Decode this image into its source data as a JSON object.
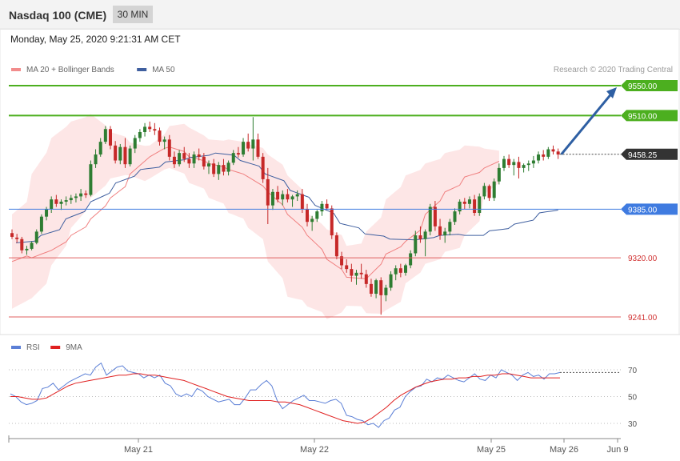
{
  "header": {
    "title": "Nasdaq 100 (CME)",
    "timeframe": "30 MIN"
  },
  "date_line": "Monday, May 25, 2020 9:21:31 AM CET",
  "credit": "Research © 2020 Trading Central",
  "colors": {
    "up": "#2e7d32",
    "down": "#c62828",
    "band": "#fde0e0",
    "ma20": "#f08080",
    "ma50": "#3f5f9f",
    "resistance": "#4caf1f",
    "pivot": "#3f7be0",
    "support": "#e06060",
    "current": "#333333",
    "arrow": "#2e5fa3",
    "rsi": "#5b7fd6",
    "rsi_ma": "#e02020"
  },
  "chart_data": [
    {
      "type": "candlestick",
      "legend": [
        {
          "name": "MA 20 + Bollinger Bands",
          "color": "#f28c8c"
        },
        {
          "name": "MA 50",
          "color": "#3f5f9f"
        }
      ],
      "levels": [
        {
          "value": 9550.0,
          "label": "9550.00",
          "kind": "resistance"
        },
        {
          "value": 9510.0,
          "label": "9510.00",
          "kind": "resistance"
        },
        {
          "value": 9458.25,
          "label": "9458.25",
          "kind": "current"
        },
        {
          "value": 9385.0,
          "label": "9385.00",
          "kind": "pivot"
        },
        {
          "value": 9320.0,
          "label": "9320.00",
          "kind": "support"
        },
        {
          "value": 9241.0,
          "label": "9241.00",
          "kind": "support"
        }
      ],
      "ylim": [
        9232,
        9562
      ],
      "x_ticks": [
        "May 21",
        "May 22",
        "May 25",
        "May 26",
        "Jun 9"
      ],
      "ohlc": [
        [
          9353,
          9358,
          9345,
          9348
        ],
        [
          9347,
          9352,
          9340,
          9345
        ],
        [
          9345,
          9348,
          9326,
          9330
        ],
        [
          9330,
          9336,
          9324,
          9332
        ],
        [
          9332,
          9342,
          9330,
          9340
        ],
        [
          9340,
          9358,
          9338,
          9355
        ],
        [
          9355,
          9378,
          9352,
          9375
        ],
        [
          9375,
          9388,
          9370,
          9385
        ],
        [
          9385,
          9402,
          9380,
          9398
        ],
        [
          9398,
          9404,
          9388,
          9392
        ],
        [
          9392,
          9398,
          9384,
          9395
        ],
        [
          9395,
          9402,
          9390,
          9397
        ],
        [
          9397,
          9404,
          9392,
          9400
        ],
        [
          9400,
          9406,
          9394,
          9402
        ],
        [
          9402,
          9412,
          9396,
          9406
        ],
        [
          9406,
          9410,
          9400,
          9404
        ],
        [
          9404,
          9450,
          9402,
          9445
        ],
        [
          9445,
          9465,
          9440,
          9458
        ],
        [
          9458,
          9480,
          9455,
          9475
        ],
        [
          9475,
          9496,
          9472,
          9492
        ],
        [
          9492,
          9496,
          9465,
          9470
        ],
        [
          9470,
          9476,
          9446,
          9450
        ],
        [
          9450,
          9472,
          9445,
          9468
        ],
        [
          9468,
          9480,
          9440,
          9445
        ],
        [
          9445,
          9470,
          9442,
          9466
        ],
        [
          9466,
          9484,
          9460,
          9480
        ],
        [
          9480,
          9492,
          9475,
          9488
        ],
        [
          9488,
          9500,
          9482,
          9495
        ],
        [
          9495,
          9502,
          9488,
          9492
        ],
        [
          9492,
          9500,
          9484,
          9490
        ],
        [
          9490,
          9494,
          9470,
          9475
        ],
        [
          9475,
          9482,
          9465,
          9478
        ],
        [
          9478,
          9484,
          9450,
          9455
        ],
        [
          9455,
          9462,
          9440,
          9445
        ],
        [
          9445,
          9464,
          9442,
          9460
        ],
        [
          9460,
          9468,
          9448,
          9452
        ],
        [
          9452,
          9460,
          9440,
          9446
        ],
        [
          9446,
          9462,
          9440,
          9458
        ],
        [
          9458,
          9466,
          9450,
          9455
        ],
        [
          9455,
          9460,
          9438,
          9442
        ],
        [
          9442,
          9450,
          9432,
          9446
        ],
        [
          9446,
          9452,
          9428,
          9432
        ],
        [
          9432,
          9448,
          9424,
          9444
        ],
        [
          9444,
          9452,
          9430,
          9435
        ],
        [
          9435,
          9450,
          9430,
          9447
        ],
        [
          9447,
          9464,
          9444,
          9460
        ],
        [
          9460,
          9468,
          9454,
          9458
        ],
        [
          9458,
          9480,
          9455,
          9475
        ],
        [
          9475,
          9486,
          9462,
          9466
        ],
        [
          9466,
          9508,
          9450,
          9478
        ],
        [
          9478,
          9486,
          9452,
          9455
        ],
        [
          9455,
          9460,
          9420,
          9425
        ],
        [
          9425,
          9440,
          9365,
          9390
        ],
        [
          9390,
          9412,
          9384,
          9408
        ],
        [
          9408,
          9416,
          9394,
          9398
        ],
        [
          9398,
          9410,
          9390,
          9405
        ],
        [
          9405,
          9412,
          9394,
          9398
        ],
        [
          9398,
          9404,
          9388,
          9402
        ],
        [
          9402,
          9410,
          9396,
          9405
        ],
        [
          9405,
          9412,
          9380,
          9385
        ],
        [
          9385,
          9392,
          9362,
          9368
        ],
        [
          9368,
          9376,
          9356,
          9372
        ],
        [
          9372,
          9384,
          9368,
          9382
        ],
        [
          9382,
          9396,
          9376,
          9392
        ],
        [
          9392,
          9398,
          9384,
          9386
        ],
        [
          9386,
          9390,
          9345,
          9350
        ],
        [
          9350,
          9354,
          9318,
          9322
        ],
        [
          9322,
          9328,
          9305,
          9310
        ],
        [
          9310,
          9318,
          9300,
          9305
        ],
        [
          9305,
          9312,
          9288,
          9296
        ],
        [
          9296,
          9304,
          9284,
          9300
        ],
        [
          9300,
          9312,
          9292,
          9298
        ],
        [
          9298,
          9304,
          9280,
          9285
        ],
        [
          9285,
          9292,
          9268,
          9272
        ],
        [
          9272,
          9292,
          9266,
          9290
        ],
        [
          9290,
          9294,
          9244,
          9270
        ],
        [
          9270,
          9284,
          9262,
          9280
        ],
        [
          9280,
          9302,
          9276,
          9298
        ],
        [
          9298,
          9310,
          9290,
          9306
        ],
        [
          9306,
          9312,
          9294,
          9300
        ],
        [
          9300,
          9312,
          9296,
          9310
        ],
        [
          9310,
          9330,
          9306,
          9326
        ],
        [
          9326,
          9356,
          9322,
          9350
        ],
        [
          9350,
          9362,
          9340,
          9345
        ],
        [
          9345,
          9358,
          9322,
          9355
        ],
        [
          9355,
          9392,
          9350,
          9388
        ],
        [
          9388,
          9396,
          9356,
          9362
        ],
        [
          9362,
          9372,
          9344,
          9350
        ],
        [
          9350,
          9360,
          9340,
          9355
        ],
        [
          9355,
          9372,
          9350,
          9368
        ],
        [
          9368,
          9386,
          9364,
          9382
        ],
        [
          9382,
          9398,
          9378,
          9395
        ],
        [
          9395,
          9400,
          9385,
          9392
        ],
        [
          9392,
          9402,
          9386,
          9398
        ],
        [
          9398,
          9404,
          9376,
          9380
        ],
        [
          9380,
          9406,
          9376,
          9402
        ],
        [
          9402,
          9420,
          9398,
          9416
        ],
        [
          9416,
          9418,
          9396,
          9400
        ],
        [
          9400,
          9426,
          9396,
          9422
        ],
        [
          9422,
          9446,
          9418,
          9440
        ],
        [
          9440,
          9456,
          9436,
          9452
        ],
        [
          9452,
          9458,
          9440,
          9444
        ],
        [
          9444,
          9452,
          9430,
          9448
        ],
        [
          9448,
          9455,
          9426,
          9440
        ],
        [
          9440,
          9446,
          9434,
          9444
        ],
        [
          9444,
          9450,
          9436,
          9446
        ],
        [
          9446,
          9456,
          9440,
          9450
        ],
        [
          9450,
          9462,
          9446,
          9458
        ],
        [
          9458,
          9464,
          9450,
          9455
        ],
        [
          9455,
          9468,
          9452,
          9465
        ],
        [
          9465,
          9470,
          9458,
          9462
        ],
        [
          9462,
          9466,
          9452,
          9458
        ]
      ],
      "ma20": [
        [
          9315,
          9325
        ],
        [
          9320,
          9330
        ],
        [
          9330,
          9345
        ],
        [
          9350,
          9365
        ],
        [
          9372,
          9395
        ],
        [
          9400,
          9420
        ],
        [
          9432,
          9455
        ],
        [
          9455,
          9470
        ],
        [
          9468,
          9460
        ],
        [
          9455,
          9448
        ],
        [
          9446,
          9440
        ],
        [
          9438,
          9430
        ],
        [
          9428,
          9412
        ],
        [
          9408,
          9385
        ],
        [
          9378,
          9355
        ],
        [
          9350,
          9325
        ],
        [
          9318,
          9300
        ],
        [
          9294,
          9292
        ],
        [
          9292,
          9318
        ],
        [
          9325,
          9338
        ],
        [
          9342,
          9362
        ],
        [
          9378,
          9402
        ],
        [
          9408,
          9420
        ],
        [
          9428,
          9436
        ],
        [
          9440,
          9452
        ]
      ],
      "bb_upper": [
        [
          9378,
          9400
        ],
        [
          9432,
          9470
        ],
        [
          9480,
          9500
        ],
        [
          9502,
          9510
        ],
        [
          9512,
          9492
        ],
        [
          9488,
          9480
        ],
        [
          9474,
          9468
        ],
        [
          9470,
          9490
        ],
        [
          9496,
          9500
        ],
        [
          9494,
          9480
        ],
        [
          9478,
          9476
        ],
        [
          9478,
          9474
        ],
        [
          9472,
          9465
        ],
        [
          9458,
          9440
        ],
        [
          9430,
          9405
        ],
        [
          9380,
          9360
        ],
        [
          9358,
          9348
        ],
        [
          9336,
          9340
        ],
        [
          9355,
          9380
        ],
        [
          9398,
          9420
        ],
        [
          9430,
          9440
        ],
        [
          9446,
          9454
        ],
        [
          9460,
          9466
        ],
        [
          9470,
          9468
        ],
        [
          9466,
          9462
        ]
      ],
      "bb_lower": [
        [
          9252,
          9266
        ],
        [
          9266,
          9292
        ],
        [
          9310,
          9345
        ],
        [
          9360,
          9390
        ],
        [
          9400,
          9422
        ],
        [
          9426,
          9432
        ],
        [
          9430,
          9420
        ],
        [
          9426,
          9442
        ],
        [
          9440,
          9430
        ],
        [
          9420,
          9410
        ],
        [
          9400,
          9390
        ],
        [
          9380,
          9370
        ],
        [
          9360,
          9340
        ],
        [
          9315,
          9285
        ],
        [
          9268,
          9262
        ],
        [
          9255,
          9245
        ],
        [
          9238,
          9250
        ],
        [
          9256,
          9255
        ],
        [
          9246,
          9245
        ],
        [
          9250,
          9265
        ],
        [
          9286,
          9305
        ],
        [
          9312,
          9320
        ],
        [
          9328,
          9335
        ],
        [
          9350,
          9375
        ],
        [
          9405,
          9425
        ]
      ],
      "ma50": [
        [
          9340,
          9343
        ],
        [
          9350,
          9360
        ],
        [
          9372,
          9385
        ],
        [
          9395,
          9410
        ],
        [
          9420,
          9432
        ],
        [
          9438,
          9442
        ],
        [
          9448,
          9452
        ],
        [
          9454,
          9458
        ],
        [
          9460,
          9456
        ],
        [
          9450,
          9440
        ],
        [
          9432,
          9420
        ],
        [
          9410,
          9398
        ],
        [
          9390,
          9376
        ],
        [
          9366,
          9358
        ],
        [
          9352,
          9348
        ],
        [
          9345,
          9344
        ],
        [
          9344,
          9348
        ],
        [
          9350,
          9352
        ],
        [
          9350,
          9350
        ],
        [
          9356,
          9360
        ],
        [
          9365,
          9372
        ],
        [
          9380,
          9385
        ]
      ]
    },
    {
      "type": "line",
      "legend": [
        {
          "name": "RSI",
          "color": "#5b7fd6"
        },
        {
          "name": "9MA",
          "color": "#e02020"
        }
      ],
      "ylim": [
        17,
        81
      ],
      "y_ticks": [
        30,
        50,
        70
      ],
      "series": [
        {
          "name": "RSI",
          "values": [
            52,
            50,
            46,
            44,
            45,
            47,
            56,
            57,
            60,
            55,
            58,
            61,
            63,
            65,
            67,
            66,
            72,
            75,
            66,
            69,
            72,
            73,
            69,
            68,
            67,
            64,
            66,
            64,
            66,
            60,
            58,
            52,
            50,
            52,
            50,
            56,
            54,
            50,
            48,
            46,
            47,
            48,
            44,
            44,
            49,
            55,
            55,
            59,
            62,
            58,
            47,
            41,
            44,
            47,
            49,
            51,
            47,
            47,
            46,
            45,
            47,
            48,
            45,
            36,
            35,
            33,
            32,
            29,
            30,
            27,
            32,
            34,
            40,
            42,
            50,
            54,
            57,
            58,
            63,
            61,
            64,
            63,
            66,
            64,
            62,
            61,
            64,
            67,
            63,
            62,
            66,
            64,
            70,
            68,
            66,
            62,
            66,
            68,
            65,
            66,
            63,
            67,
            67,
            68
          ]
        },
        {
          "name": "9MA",
          "values": [
            50,
            50,
            49,
            48,
            48,
            49,
            52,
            55,
            58,
            60,
            61,
            62,
            63,
            64,
            65,
            66,
            66,
            67,
            67,
            66,
            66,
            65,
            64,
            63,
            62,
            60,
            58,
            56,
            54,
            52,
            50,
            49,
            48,
            47,
            47,
            47,
            47,
            46,
            46,
            45,
            44,
            42,
            40,
            38,
            36,
            34,
            32,
            31,
            30,
            31,
            34,
            38,
            42,
            47,
            51,
            54,
            57,
            59,
            61,
            62,
            63,
            63,
            64,
            64,
            65,
            65,
            66,
            66,
            67,
            67,
            66,
            65,
            64,
            64,
            64,
            64,
            64
          ]
        }
      ]
    }
  ]
}
